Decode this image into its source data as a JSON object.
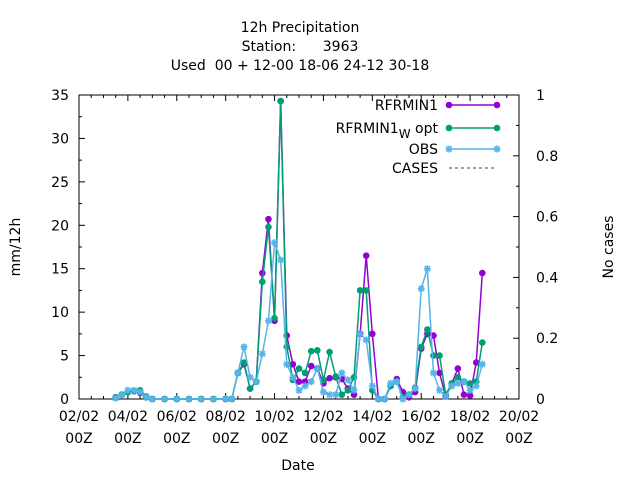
{
  "chart_data": {
    "type": "line",
    "title_lines": [
      "12h Precipitation",
      "Station:      3963",
      "Used  00 + 12-00 18-06 24-12 30-18"
    ],
    "xlabel": "Date",
    "ylabel": "mm/12h",
    "y2label": "No cases",
    "xlim_days": [
      0,
      18
    ],
    "ylim": [
      0,
      35
    ],
    "y2lim": [
      0,
      1
    ],
    "x_tick_labels": [
      [
        "02/02",
        "00Z"
      ],
      [
        "04/02",
        "00Z"
      ],
      [
        "06/02",
        "00Z"
      ],
      [
        "08/02",
        "00Z"
      ],
      [
        "10/02",
        "00Z"
      ],
      [
        "12/02",
        "00Z"
      ],
      [
        "14/02",
        "00Z"
      ],
      [
        "16/02",
        "00Z"
      ],
      [
        "18/02",
        "00Z"
      ],
      [
        "20/02",
        "00Z"
      ]
    ],
    "y_tick_labels": [
      "0",
      "5",
      "10",
      "15",
      "20",
      "25",
      "30",
      "35"
    ],
    "y2_tick_labels": [
      "0",
      "0.2",
      "0.4",
      "0.6",
      "0.8",
      "1"
    ],
    "legend": {
      "placement": "top-right"
    },
    "series": [
      {
        "name": "RFRMIN1",
        "name_sub": "",
        "name_suffix": "",
        "color": "#9400d3",
        "marker": "circle",
        "points": [
          [
            1.5,
            0.2
          ],
          [
            1.75,
            0.5
          ],
          [
            2.0,
            0.8
          ],
          [
            2.25,
            0.9
          ],
          [
            2.5,
            0.7
          ],
          [
            2.75,
            0.2
          ],
          [
            3.0,
            0
          ],
          [
            3.5,
            0
          ],
          [
            4.0,
            0
          ],
          [
            4.5,
            0
          ],
          [
            5.0,
            0
          ],
          [
            5.5,
            0
          ],
          [
            6.0,
            0
          ],
          [
            6.25,
            0
          ],
          [
            6.5,
            3.0
          ],
          [
            6.75,
            4.0
          ],
          [
            7.0,
            1.2
          ],
          [
            7.25,
            2.0
          ],
          [
            7.5,
            14.5
          ],
          [
            7.75,
            20.7
          ],
          [
            8.0,
            9.0
          ],
          [
            8.25,
            34.3
          ],
          [
            8.5,
            7.3
          ],
          [
            8.75,
            4.0
          ],
          [
            9.0,
            2.0
          ],
          [
            9.25,
            2.0
          ],
          [
            9.5,
            3.8
          ],
          [
            9.75,
            3.5
          ],
          [
            10.0,
            1.8
          ],
          [
            10.25,
            2.4
          ],
          [
            10.5,
            2.5
          ],
          [
            10.75,
            2.3
          ],
          [
            11.0,
            1.2
          ],
          [
            11.25,
            0.5
          ],
          [
            11.5,
            7.5
          ],
          [
            11.75,
            16.5
          ],
          [
            12.0,
            7.5
          ],
          [
            12.25,
            0
          ],
          [
            12.5,
            0
          ],
          [
            12.75,
            1.5
          ],
          [
            13.0,
            2.3
          ],
          [
            13.25,
            0.8
          ],
          [
            13.5,
            0.2
          ],
          [
            13.75,
            0.8
          ],
          [
            14.0,
            5.8
          ],
          [
            14.25,
            7.5
          ],
          [
            14.5,
            7.3
          ],
          [
            14.75,
            3.0
          ],
          [
            15.0,
            0.3
          ],
          [
            15.25,
            1.8
          ],
          [
            15.5,
            3.5
          ],
          [
            15.75,
            0.5
          ],
          [
            16.0,
            0.4
          ],
          [
            16.25,
            4.2
          ],
          [
            16.5,
            14.5
          ]
        ]
      },
      {
        "name": "RFRMIN1",
        "name_sub": "W",
        "name_suffix": " opt",
        "color": "#009e73",
        "marker": "circle",
        "points": [
          [
            1.5,
            0.2
          ],
          [
            1.75,
            0.5
          ],
          [
            2.0,
            0.8
          ],
          [
            2.25,
            0.9
          ],
          [
            2.5,
            1.0
          ],
          [
            2.75,
            0.3
          ],
          [
            3.0,
            0
          ],
          [
            3.5,
            0
          ],
          [
            4.0,
            0
          ],
          [
            4.5,
            0
          ],
          [
            5.0,
            0
          ],
          [
            5.5,
            0
          ],
          [
            6.0,
            0
          ],
          [
            6.25,
            0
          ],
          [
            6.5,
            3.0
          ],
          [
            6.75,
            4.2
          ],
          [
            7.0,
            1.2
          ],
          [
            7.25,
            2.0
          ],
          [
            7.5,
            13.5
          ],
          [
            7.75,
            19.8
          ],
          [
            8.0,
            9.3
          ],
          [
            8.25,
            34.3
          ],
          [
            8.5,
            6.0
          ],
          [
            8.75,
            2.2
          ],
          [
            9.0,
            3.5
          ],
          [
            9.25,
            3.0
          ],
          [
            9.5,
            5.5
          ],
          [
            9.75,
            5.6
          ],
          [
            10.0,
            2.2
          ],
          [
            10.25,
            5.4
          ],
          [
            10.5,
            2.6
          ],
          [
            10.75,
            0.5
          ],
          [
            11.0,
            1.0
          ],
          [
            11.25,
            2.5
          ],
          [
            11.5,
            12.5
          ],
          [
            11.75,
            12.5
          ],
          [
            12.0,
            1.0
          ],
          [
            12.25,
            0
          ],
          [
            12.5,
            0
          ],
          [
            12.75,
            1.5
          ],
          [
            13.0,
            2.0
          ],
          [
            13.25,
            0.2
          ],
          [
            13.5,
            0.5
          ],
          [
            13.75,
            1.3
          ],
          [
            14.0,
            6.0
          ],
          [
            14.25,
            8.0
          ],
          [
            14.5,
            5.0
          ],
          [
            14.75,
            5.0
          ],
          [
            15.0,
            0.5
          ],
          [
            15.25,
            1.8
          ],
          [
            15.5,
            2.5
          ],
          [
            15.75,
            2.0
          ],
          [
            16.0,
            1.8
          ],
          [
            16.25,
            2.0
          ],
          [
            16.5,
            6.5
          ]
        ]
      },
      {
        "name": "OBS",
        "name_sub": "",
        "name_suffix": "",
        "color": "#56b4e9",
        "marker": "star",
        "points": [
          [
            1.5,
            0.1
          ],
          [
            1.75,
            0.5
          ],
          [
            2.0,
            1.0
          ],
          [
            2.25,
            1.0
          ],
          [
            2.5,
            0.8
          ],
          [
            2.75,
            0.2
          ],
          [
            3.0,
            0
          ],
          [
            3.5,
            0
          ],
          [
            4.0,
            0
          ],
          [
            4.5,
            0
          ],
          [
            5.0,
            0
          ],
          [
            5.5,
            0
          ],
          [
            6.0,
            0
          ],
          [
            6.25,
            0
          ],
          [
            6.5,
            3.0
          ],
          [
            6.75,
            6.0
          ],
          [
            7.0,
            2.5
          ],
          [
            7.25,
            2.0
          ],
          [
            7.5,
            5.2
          ],
          [
            7.75,
            9.0
          ],
          [
            8.0,
            18.0
          ],
          [
            8.25,
            16.0
          ],
          [
            8.5,
            4.0
          ],
          [
            8.75,
            2.5
          ],
          [
            9.0,
            1.0
          ],
          [
            9.25,
            1.5
          ],
          [
            9.5,
            2.0
          ],
          [
            9.75,
            3.5
          ],
          [
            10.0,
            0.8
          ],
          [
            10.25,
            0.5
          ],
          [
            10.5,
            0.5
          ],
          [
            10.75,
            3.0
          ],
          [
            11.0,
            2.2
          ],
          [
            11.25,
            1.0
          ],
          [
            11.5,
            7.5
          ],
          [
            11.75,
            6.8
          ],
          [
            12.0,
            1.5
          ],
          [
            12.25,
            0
          ],
          [
            12.5,
            0
          ],
          [
            12.75,
            1.8
          ],
          [
            13.0,
            2.0
          ],
          [
            13.25,
            0
          ],
          [
            13.5,
            0.5
          ],
          [
            13.75,
            1.2
          ],
          [
            14.0,
            12.7
          ],
          [
            14.25,
            15.0
          ],
          [
            14.5,
            3.0
          ],
          [
            14.75,
            1.0
          ],
          [
            15.0,
            0.3
          ],
          [
            15.25,
            1.5
          ],
          [
            15.5,
            1.8
          ],
          [
            15.75,
            2.0
          ],
          [
            16.0,
            1.0
          ],
          [
            16.25,
            1.5
          ],
          [
            16.5,
            4.0
          ]
        ]
      },
      {
        "name": "CASES",
        "name_sub": "",
        "name_suffix": "",
        "color": "#808080",
        "marker": "none",
        "dashed": true,
        "points": []
      }
    ]
  }
}
